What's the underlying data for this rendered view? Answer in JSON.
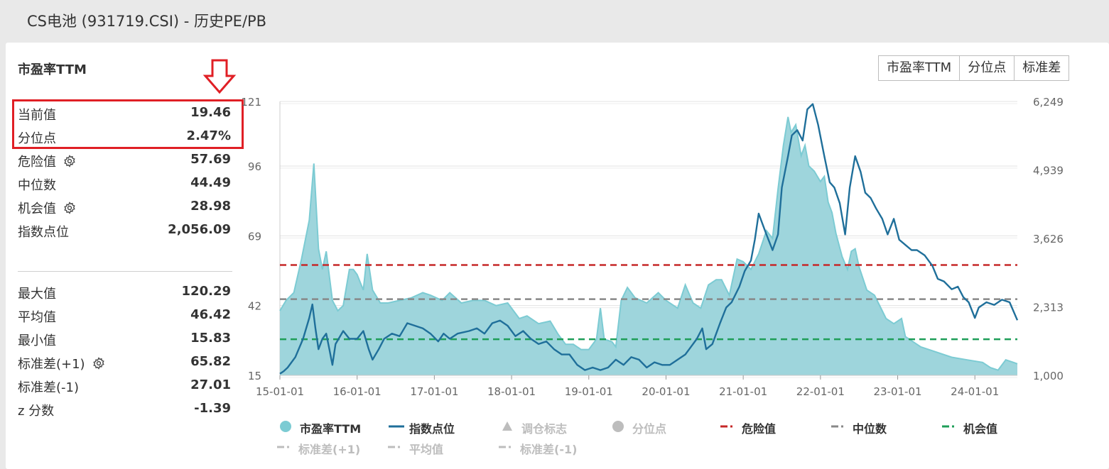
{
  "page": {
    "title": "CS电池 (931719.CSI) - 历史PE/PB"
  },
  "panel": {
    "metric_title": "市盈率TTM",
    "stats_top": [
      {
        "label": "当前值",
        "value": "19.46"
      },
      {
        "label": "分位点",
        "value": "2.47%"
      },
      {
        "label": "危险值",
        "value": "57.69"
      },
      {
        "label": "中位数",
        "value": "44.49"
      },
      {
        "label": "机会值",
        "value": "28.98"
      },
      {
        "label": "指数点位",
        "value": "2,056.09"
      }
    ],
    "stats_bottom": [
      {
        "label": "最大值",
        "value": "120.29"
      },
      {
        "label": "平均值",
        "value": "46.42"
      },
      {
        "label": "最小值",
        "value": "15.83"
      },
      {
        "label": "标准差(+1)",
        "value": "65.82"
      },
      {
        "label": "标准差(-1)",
        "value": "27.01"
      },
      {
        "label": "z 分数",
        "value": "-1.39"
      }
    ]
  },
  "toolbar": {
    "buttons": [
      "市盈率TTM",
      "分位点",
      "标准差"
    ]
  },
  "colors": {
    "pe_fill": "#9ed5dc",
    "pe_line": "#7ccbd3",
    "index_line": "#1f6f9a",
    "danger": "#c62828",
    "median": "#888888",
    "opportunity": "#1e9e58",
    "highlight": "#e01f25",
    "legend_off": "#bdbdbd"
  },
  "legend": [
    {
      "label": "市盈率TTM",
      "icon": "circle",
      "active": true
    },
    {
      "label": "指数点位",
      "icon": "line",
      "active": true
    },
    {
      "label": "调仓标志",
      "icon": "triangle",
      "active": false
    },
    {
      "label": "分位点",
      "icon": "circle",
      "active": false
    },
    {
      "label": "危险值",
      "icon": "dash-dot",
      "active": true
    },
    {
      "label": "中位数",
      "icon": "dash-dot",
      "active": true
    },
    {
      "label": "机会值",
      "icon": "dash-dot",
      "active": true
    },
    {
      "label": "标准差(+1)",
      "icon": "dash-dot",
      "active": false
    },
    {
      "label": "平均值",
      "icon": "dash-dot",
      "active": false
    },
    {
      "label": "标准差(-1)",
      "icon": "dash-dot",
      "active": false
    }
  ],
  "chart_data": {
    "type": "area",
    "x_ticks": [
      "15-01-01",
      "16-01-01",
      "17-01-01",
      "18-01-01",
      "19-01-01",
      "20-01-01",
      "21-01-01",
      "22-01-01",
      "23-01-01",
      "24-01-01"
    ],
    "y_left_ticks": [
      "15",
      "42",
      "69",
      "96",
      "121"
    ],
    "y_right_ticks": [
      "1,000",
      "2,313",
      "3,626",
      "4,939",
      "6,249"
    ],
    "y_left_range": [
      15,
      121
    ],
    "y_right_range": [
      1000,
      6249
    ],
    "x_range": [
      2015.0,
      2024.55
    ],
    "reference_lines": {
      "danger": 57.69,
      "median": 44.49,
      "opportunity": 28.98
    },
    "series": [
      {
        "name": "市盈率TTM",
        "axis": "left",
        "points": [
          [
            2015.0,
            40
          ],
          [
            2015.08,
            44
          ],
          [
            2015.18,
            47
          ],
          [
            2015.28,
            60
          ],
          [
            2015.38,
            75
          ],
          [
            2015.44,
            97
          ],
          [
            2015.5,
            64
          ],
          [
            2015.55,
            56
          ],
          [
            2015.6,
            63
          ],
          [
            2015.68,
            44
          ],
          [
            2015.75,
            40
          ],
          [
            2015.82,
            42
          ],
          [
            2015.9,
            56
          ],
          [
            2015.95,
            56
          ],
          [
            2016.0,
            54
          ],
          [
            2016.08,
            48
          ],
          [
            2016.13,
            62
          ],
          [
            2016.2,
            48
          ],
          [
            2016.3,
            43
          ],
          [
            2016.4,
            43
          ],
          [
            2016.55,
            44
          ],
          [
            2016.7,
            45
          ],
          [
            2016.85,
            47
          ],
          [
            2016.95,
            46
          ],
          [
            2017.1,
            44
          ],
          [
            2017.2,
            47
          ],
          [
            2017.35,
            43
          ],
          [
            2017.5,
            44
          ],
          [
            2017.65,
            44
          ],
          [
            2017.8,
            42
          ],
          [
            2017.95,
            43
          ],
          [
            2018.1,
            37
          ],
          [
            2018.2,
            38
          ],
          [
            2018.35,
            35
          ],
          [
            2018.5,
            36
          ],
          [
            2018.6,
            31
          ],
          [
            2018.7,
            27
          ],
          [
            2018.8,
            27
          ],
          [
            2018.9,
            25
          ],
          [
            2019.0,
            25
          ],
          [
            2019.1,
            29
          ],
          [
            2019.15,
            41
          ],
          [
            2019.2,
            29
          ],
          [
            2019.3,
            28
          ],
          [
            2019.35,
            26
          ],
          [
            2019.42,
            44
          ],
          [
            2019.5,
            49
          ],
          [
            2019.6,
            45
          ],
          [
            2019.75,
            43
          ],
          [
            2019.9,
            47
          ],
          [
            2020.0,
            44
          ],
          [
            2020.15,
            41
          ],
          [
            2020.25,
            50
          ],
          [
            2020.35,
            43
          ],
          [
            2020.45,
            41
          ],
          [
            2020.55,
            50
          ],
          [
            2020.65,
            52
          ],
          [
            2020.72,
            52
          ],
          [
            2020.82,
            46
          ],
          [
            2020.92,
            60
          ],
          [
            2021.0,
            59
          ],
          [
            2021.1,
            56
          ],
          [
            2021.2,
            62
          ],
          [
            2021.3,
            71
          ],
          [
            2021.38,
            68
          ],
          [
            2021.45,
            87
          ],
          [
            2021.52,
            104
          ],
          [
            2021.58,
            115
          ],
          [
            2021.62,
            109
          ],
          [
            2021.68,
            112
          ],
          [
            2021.75,
            100
          ],
          [
            2021.8,
            104
          ],
          [
            2021.85,
            96
          ],
          [
            2021.92,
            94
          ],
          [
            2022.0,
            90
          ],
          [
            2022.05,
            92
          ],
          [
            2022.1,
            82
          ],
          [
            2022.15,
            78
          ],
          [
            2022.2,
            70
          ],
          [
            2022.28,
            61
          ],
          [
            2022.35,
            56
          ],
          [
            2022.4,
            63
          ],
          [
            2022.45,
            64
          ],
          [
            2022.5,
            57
          ],
          [
            2022.6,
            48
          ],
          [
            2022.7,
            46
          ],
          [
            2022.8,
            40
          ],
          [
            2022.85,
            37
          ],
          [
            2022.95,
            35
          ],
          [
            2023.05,
            37
          ],
          [
            2023.1,
            30
          ],
          [
            2023.3,
            26
          ],
          [
            2023.5,
            24
          ],
          [
            2023.7,
            22
          ],
          [
            2023.9,
            21
          ],
          [
            2024.1,
            20
          ],
          [
            2024.2,
            18
          ],
          [
            2024.3,
            17
          ],
          [
            2024.4,
            21
          ],
          [
            2024.5,
            20
          ],
          [
            2024.55,
            19.46
          ]
        ]
      },
      {
        "name": "指数点位",
        "axis": "right",
        "points": [
          [
            2015.0,
            1030
          ],
          [
            2015.05,
            1080
          ],
          [
            2015.1,
            1150
          ],
          [
            2015.2,
            1350
          ],
          [
            2015.3,
            1700
          ],
          [
            2015.38,
            2100
          ],
          [
            2015.42,
            2360
          ],
          [
            2015.46,
            1900
          ],
          [
            2015.5,
            1500
          ],
          [
            2015.55,
            1700
          ],
          [
            2015.6,
            1800
          ],
          [
            2015.64,
            1500
          ],
          [
            2015.68,
            1200
          ],
          [
            2015.72,
            1600
          ],
          [
            2015.82,
            1850
          ],
          [
            2015.9,
            1700
          ],
          [
            2016.0,
            1700
          ],
          [
            2016.08,
            1850
          ],
          [
            2016.15,
            1500
          ],
          [
            2016.2,
            1300
          ],
          [
            2016.28,
            1500
          ],
          [
            2016.35,
            1700
          ],
          [
            2016.45,
            1800
          ],
          [
            2016.55,
            1750
          ],
          [
            2016.65,
            2000
          ],
          [
            2016.75,
            1950
          ],
          [
            2016.85,
            1900
          ],
          [
            2016.95,
            1800
          ],
          [
            2017.05,
            1650
          ],
          [
            2017.12,
            1800
          ],
          [
            2017.2,
            1700
          ],
          [
            2017.3,
            1800
          ],
          [
            2017.45,
            1850
          ],
          [
            2017.55,
            1900
          ],
          [
            2017.65,
            1800
          ],
          [
            2017.75,
            2000
          ],
          [
            2017.85,
            2050
          ],
          [
            2017.95,
            1950
          ],
          [
            2018.05,
            1750
          ],
          [
            2018.15,
            1850
          ],
          [
            2018.25,
            1700
          ],
          [
            2018.35,
            1600
          ],
          [
            2018.45,
            1650
          ],
          [
            2018.55,
            1500
          ],
          [
            2018.65,
            1400
          ],
          [
            2018.75,
            1400
          ],
          [
            2018.85,
            1200
          ],
          [
            2018.95,
            1100
          ],
          [
            2019.05,
            1150
          ],
          [
            2019.15,
            1100
          ],
          [
            2019.25,
            1150
          ],
          [
            2019.35,
            1300
          ],
          [
            2019.45,
            1200
          ],
          [
            2019.55,
            1350
          ],
          [
            2019.65,
            1300
          ],
          [
            2019.75,
            1150
          ],
          [
            2019.85,
            1250
          ],
          [
            2019.95,
            1200
          ],
          [
            2020.05,
            1200
          ],
          [
            2020.15,
            1300
          ],
          [
            2020.25,
            1400
          ],
          [
            2020.3,
            1500
          ],
          [
            2020.4,
            1700
          ],
          [
            2020.47,
            1900
          ],
          [
            2020.52,
            1500
          ],
          [
            2020.6,
            1600
          ],
          [
            2020.7,
            2000
          ],
          [
            2020.78,
            2300
          ],
          [
            2020.85,
            2400
          ],
          [
            2020.95,
            2700
          ],
          [
            2021.02,
            3000
          ],
          [
            2021.1,
            3200
          ],
          [
            2021.15,
            3600
          ],
          [
            2021.2,
            4100
          ],
          [
            2021.25,
            3900
          ],
          [
            2021.3,
            3700
          ],
          [
            2021.38,
            3400
          ],
          [
            2021.45,
            3700
          ],
          [
            2021.5,
            4600
          ],
          [
            2021.58,
            5200
          ],
          [
            2021.63,
            5600
          ],
          [
            2021.7,
            5700
          ],
          [
            2021.77,
            5500
          ],
          [
            2021.83,
            6100
          ],
          [
            2021.9,
            6200
          ],
          [
            2021.97,
            5800
          ],
          [
            2022.05,
            5200
          ],
          [
            2022.12,
            4700
          ],
          [
            2022.18,
            4600
          ],
          [
            2022.25,
            4300
          ],
          [
            2022.32,
            3700
          ],
          [
            2022.38,
            4600
          ],
          [
            2022.45,
            5200
          ],
          [
            2022.52,
            4900
          ],
          [
            2022.58,
            4500
          ],
          [
            2022.65,
            4400
          ],
          [
            2022.72,
            4200
          ],
          [
            2022.8,
            4000
          ],
          [
            2022.87,
            3700
          ],
          [
            2022.95,
            4000
          ],
          [
            2023.02,
            3600
          ],
          [
            2023.1,
            3500
          ],
          [
            2023.18,
            3400
          ],
          [
            2023.25,
            3400
          ],
          [
            2023.35,
            3300
          ],
          [
            2023.45,
            3100
          ],
          [
            2023.52,
            2850
          ],
          [
            2023.6,
            2800
          ],
          [
            2023.7,
            2650
          ],
          [
            2023.78,
            2700
          ],
          [
            2023.85,
            2500
          ],
          [
            2023.92,
            2400
          ],
          [
            2024.0,
            2100
          ],
          [
            2024.05,
            2300
          ],
          [
            2024.15,
            2400
          ],
          [
            2024.25,
            2350
          ],
          [
            2024.35,
            2450
          ],
          [
            2024.45,
            2400
          ],
          [
            2024.55,
            2056
          ]
        ]
      }
    ]
  }
}
